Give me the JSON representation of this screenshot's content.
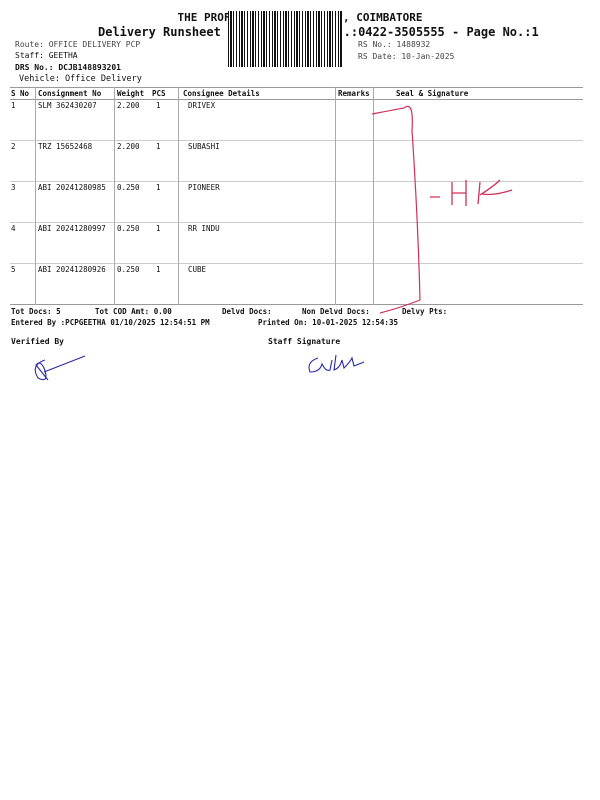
{
  "header": {
    "company": "THE PROFESSIONAL COURIERS, COIMBATORE",
    "subtitle": "Delivery Runsheet - PCP - Phone No.:0422-3505555 - Page No.:1"
  },
  "info": {
    "route": "Route: OFFICE DELIVERY PCP",
    "staff": "Staff: GEETHA",
    "drs": "DRS No.: DCJB148893201",
    "vehicle": "Vehicle: Office Delivery",
    "rs_no": "RS No.: 1488932",
    "rs_date": "RS Date: 10-Jan-2025"
  },
  "table": {
    "columns": [
      "S No",
      "Consignment No",
      "Weight",
      "PCS",
      "Consignee Details",
      "Remarks",
      "Seal & Signature"
    ],
    "rows": [
      {
        "sno": "1",
        "cn": "SLM 362430207",
        "weight": "2.200",
        "pcs": "1",
        "consignee": "DRIVEX"
      },
      {
        "sno": "2",
        "cn": "TRZ 15652468",
        "weight": "2.200",
        "pcs": "1",
        "consignee": "SUBASHI"
      },
      {
        "sno": "3",
        "cn": "ABI 20241280985",
        "weight": "0.250",
        "pcs": "1",
        "consignee": "PIONEER"
      },
      {
        "sno": "4",
        "cn": "ABI 20241280997",
        "weight": "0.250",
        "pcs": "1",
        "consignee": "RR INDU"
      },
      {
        "sno": "5",
        "cn": "ABI 20241280926",
        "weight": "0.250",
        "pcs": "1",
        "consignee": "CUBE"
      }
    ]
  },
  "footer": {
    "tot_docs": "Tot Docs:   5",
    "tot_cod": "Tot COD Amt:    0.00",
    "delvd": "Delvd Docs:",
    "non_delvd": "Non Delvd Docs:",
    "delvy_pts": "Delvy Pts:",
    "entered": "Entered By :PCPGEETHA 01/10/2025 12:54:51 PM",
    "printed": "Printed On: 10-01-2025 12:54:35",
    "verified": "Verified By",
    "staff_sig": "Staff Signature"
  },
  "handwriting": {
    "note": "-HK",
    "ink_red": "#d0305a",
    "ink_blue": "#2a2aa8"
  }
}
